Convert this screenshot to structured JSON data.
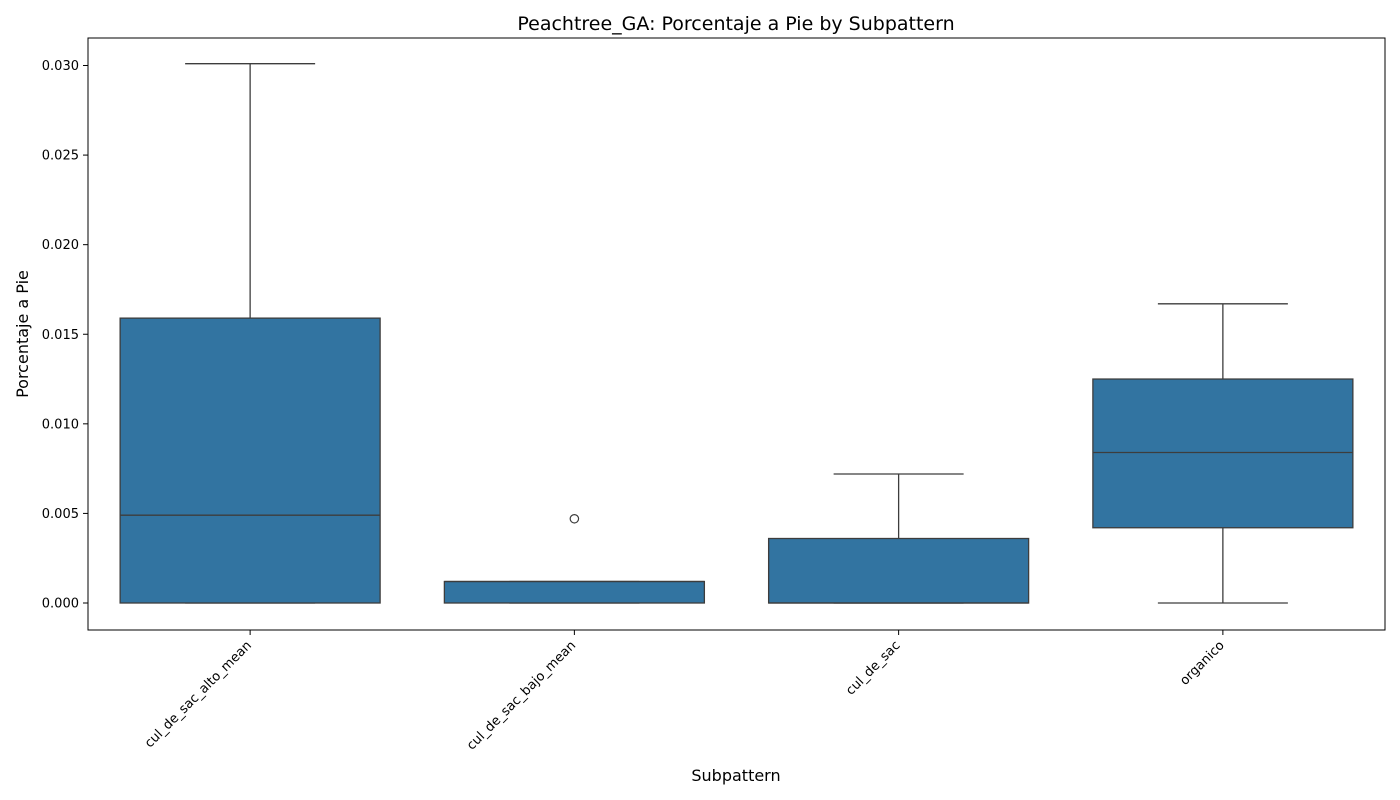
{
  "chart_data": {
    "type": "boxplot",
    "title": "Peachtree_GA: Porcentaje a Pie by Subpattern",
    "xlabel": "Subpattern",
    "ylabel": "Porcentaje a Pie",
    "ylim": [
      -0.0015,
      0.0316
    ],
    "yticks": [
      "0.000",
      "0.005",
      "0.010",
      "0.015",
      "0.020",
      "0.025",
      "0.030"
    ],
    "grid": false,
    "box_color": "#3274a1",
    "categories": [
      "cul_de_sac_alto_mean",
      "cul_de_sac_bajo_mean",
      "cul_de_sac",
      "organico"
    ],
    "boxes": [
      {
        "name": "cul_de_sac_alto_mean",
        "whisker_low": 0.0,
        "q1": 0.0,
        "median": 0.0049,
        "q3": 0.0159,
        "whisker_high": 0.0301,
        "outliers": []
      },
      {
        "name": "cul_de_sac_bajo_mean",
        "whisker_low": 0.0,
        "q1": 0.0,
        "median": 0.0012,
        "q3": 0.0012,
        "whisker_high": 0.0012,
        "outliers": [
          0.0047
        ]
      },
      {
        "name": "cul_de_sac",
        "whisker_low": 0.0,
        "q1": 0.0,
        "median": 0.0,
        "q3": 0.0036,
        "whisker_high": 0.0072,
        "outliers": []
      },
      {
        "name": "organico",
        "whisker_low": 0.0,
        "q1": 0.0042,
        "median": 0.0084,
        "q3": 0.0125,
        "whisker_high": 0.0167,
        "outliers": []
      }
    ]
  }
}
